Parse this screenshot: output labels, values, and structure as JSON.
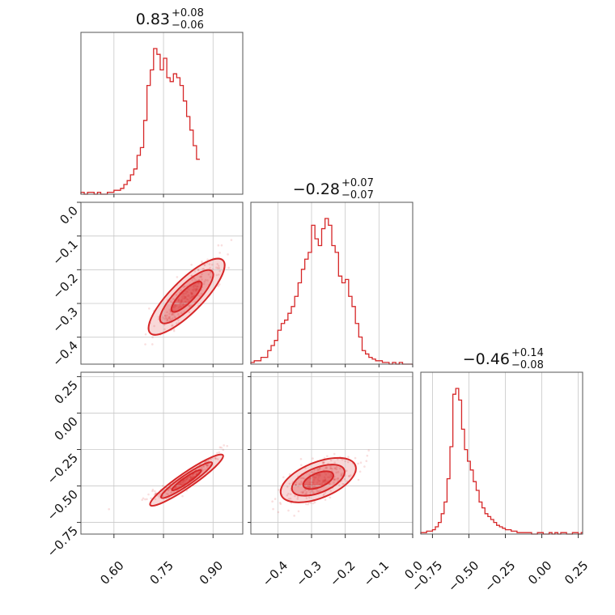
{
  "chart_data": {
    "type": "corner",
    "color": "#d62728",
    "parameters": [
      {
        "title_value": "0.83",
        "title_plus": "+0.08",
        "title_minus": "−0.06",
        "range": [
          0.5,
          0.99
        ],
        "ticks": [
          0.75,
          0.9
        ],
        "tick_labels": [
          "0.60",
          "0.75",
          "0.90"
        ],
        "tick_values": [
          0.6,
          0.75,
          0.9
        ]
      },
      {
        "title_value": "−0.28",
        "title_plus": "+0.07",
        "title_minus": "−0.07",
        "range": [
          -0.48,
          0.0
        ],
        "tick_values": [
          -0.4,
          -0.3,
          -0.2,
          -0.1,
          0.0
        ],
        "tick_labels": [
          "−0.4",
          "−0.3",
          "−0.2",
          "−0.1",
          "0.0"
        ]
      },
      {
        "title_value": "−0.46",
        "title_plus": "+0.14",
        "title_minus": "−0.08",
        "range": [
          -0.83,
          0.28
        ],
        "tick_values": [
          -0.75,
          -0.5,
          -0.25,
          0.0,
          0.25
        ],
        "tick_labels": [
          "−0.75",
          "−0.50",
          "−0.25",
          "0.00",
          "0.25"
        ]
      }
    ],
    "y_tick_sets": {
      "row1": {
        "values": [
          0.0,
          -0.1,
          -0.2,
          -0.3,
          -0.4
        ],
        "labels": [
          "0.0",
          "−0.1",
          "−0.2",
          "−0.3",
          "−0.4"
        ]
      },
      "row2": {
        "values": [
          0.25,
          0.0,
          -0.25,
          -0.5,
          -0.75
        ],
        "labels": [
          "0.25",
          "0.00",
          "−0.25",
          "−0.50",
          "−0.75"
        ]
      }
    },
    "histograms": [
      {
        "param": 0,
        "bin_edges_start": 0.5,
        "bin_width": 0.01,
        "counts": [
          1,
          0,
          1,
          1,
          0,
          1,
          0,
          0,
          1,
          1,
          2,
          2,
          3,
          5,
          7,
          10,
          13,
          20,
          24,
          38,
          56,
          64,
          75,
          72,
          64,
          70,
          60,
          58,
          62,
          60,
          56,
          48,
          40,
          33,
          25,
          18
        ]
      },
      {
        "param": 1,
        "bin_edges_start": -0.48,
        "bin_width": 0.01,
        "counts": [
          1,
          2,
          2,
          4,
          4,
          8,
          11,
          14,
          20,
          24,
          26,
          30,
          34,
          40,
          48,
          56,
          62,
          66,
          82,
          74,
          70,
          80,
          86,
          82,
          70,
          66,
          52,
          48,
          50,
          40,
          34,
          24,
          16,
          8,
          6,
          4,
          3,
          2,
          2,
          1,
          1,
          0,
          1,
          0,
          1,
          0,
          0,
          0
        ]
      },
      {
        "param": 2,
        "bin_edges_start": -0.83,
        "bin_width": 0.02,
        "counts": [
          1,
          1,
          2,
          2,
          3,
          5,
          8,
          14,
          22,
          38,
          60,
          96,
          100,
          92,
          72,
          58,
          50,
          44,
          36,
          30,
          22,
          18,
          14,
          12,
          10,
          8,
          6,
          5,
          4,
          3,
          3,
          2,
          2,
          1,
          1,
          1,
          1,
          1,
          0,
          0,
          1,
          1,
          0,
          0,
          1,
          0,
          1,
          0,
          1,
          1,
          0,
          0,
          1,
          1,
          0,
          1
        ]
      }
    ],
    "pairs": [
      {
        "x_param": 0,
        "y_param": 1,
        "mean": [
          0.82,
          -0.28
        ],
        "corr": 0.9
      },
      {
        "x_param": 0,
        "y_param": 2,
        "mean": [
          0.82,
          -0.46
        ],
        "corr": 0.95
      },
      {
        "x_param": 1,
        "y_param": 2,
        "mean": [
          -0.28,
          -0.46
        ],
        "corr": 0.6
      }
    ]
  }
}
